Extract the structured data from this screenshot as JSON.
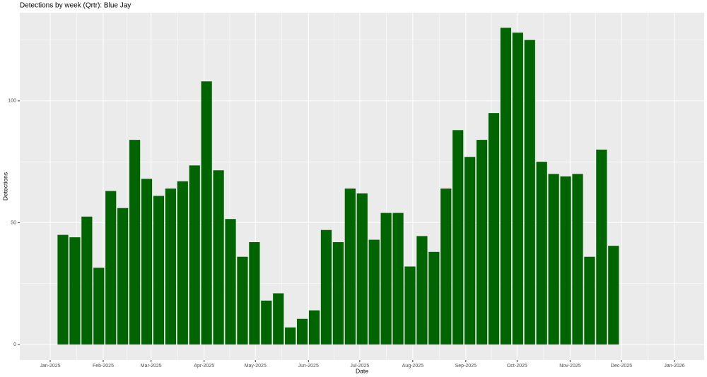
{
  "chart_data": {
    "type": "bar",
    "title": "Detections by week (Qrtr): Blue Jay",
    "x_label": "Date",
    "y_label": "Detections",
    "categories": [
      null,
      null,
      null,
      null,
      null,
      null,
      null,
      null,
      null,
      null,
      null,
      null,
      null,
      null,
      null,
      null,
      null,
      null,
      null,
      null,
      null,
      null,
      null,
      null,
      null,
      null,
      null,
      null,
      null,
      null,
      null,
      null,
      null,
      null,
      null,
      null,
      null,
      null,
      null,
      null,
      null,
      null,
      null,
      null,
      null,
      null,
      null
    ],
    "values": [
      45,
      44,
      52.5,
      31.5,
      63,
      56,
      84,
      68,
      61,
      64,
      67,
      73.5,
      108,
      71.5,
      51.5,
      36,
      42,
      18,
      21,
      7,
      10.5,
      14,
      47,
      42,
      64,
      62,
      43,
      54,
      54,
      32,
      44.5,
      38,
      64,
      88,
      77,
      84,
      95,
      130,
      128,
      125,
      75,
      70,
      69,
      70,
      36,
      80,
      40.5
    ],
    "color": "#006400",
    "ylim": [
      -6.4,
      136.2
    ],
    "yticks": [
      0,
      50,
      100
    ],
    "xticks": [
      {
        "value": "2025-01",
        "label": "Jan-2025"
      },
      {
        "value": "2025-02",
        "label": "Feb-2025"
      },
      {
        "value": "2025-03",
        "label": "Mar-2025"
      },
      {
        "value": "2025-04",
        "label": "Apr-2025"
      },
      {
        "value": "2025-05",
        "label": "May-2025"
      },
      {
        "value": "2025-06",
        "label": "Jun-2025"
      },
      {
        "value": "2025-07",
        "label": "Jul-2025"
      },
      {
        "value": "2025-08",
        "label": "Aug-2025"
      },
      {
        "value": "2025-09",
        "label": "Sep-2025"
      },
      {
        "value": "2025-10",
        "label": "Oct-2025"
      },
      {
        "value": "2025-11",
        "label": "Nov-2025"
      },
      {
        "value": "2025-12",
        "label": "Dec-2025"
      },
      {
        "value": "2026-01",
        "label": "Jan-2026"
      }
    ],
    "grid": true
  }
}
